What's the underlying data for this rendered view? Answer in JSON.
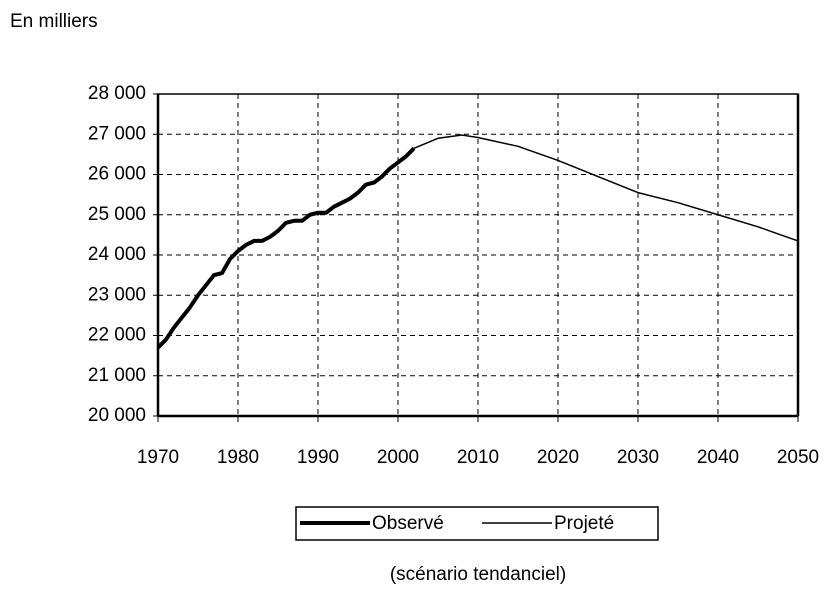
{
  "chart_data": {
    "type": "line",
    "y_label": "En milliers",
    "note": "(scénario tendanciel)",
    "xlim": [
      1970,
      2050
    ],
    "xticks": [
      1970,
      1980,
      1990,
      2000,
      2010,
      2020,
      2030,
      2040,
      2050
    ],
    "ylim": [
      20000,
      28000
    ],
    "yticks": [
      {
        "value": 20000,
        "label": "20 000"
      },
      {
        "value": 21000,
        "label": "21 000"
      },
      {
        "value": 22000,
        "label": "22 000"
      },
      {
        "value": 23000,
        "label": "23 000"
      },
      {
        "value": 24000,
        "label": "24 000"
      },
      {
        "value": 25000,
        "label": "25 000"
      },
      {
        "value": 26000,
        "label": "26 000"
      },
      {
        "value": 27000,
        "label": "27 000"
      },
      {
        "value": 28000,
        "label": "28 000"
      }
    ],
    "grid": true,
    "legend": "bottom",
    "series": [
      {
        "name": "Observé",
        "color": "#000000",
        "width": 4,
        "x": [
          1970,
          1971,
          1972,
          1973,
          1974,
          1975,
          1976,
          1977,
          1978,
          1979,
          1980,
          1981,
          1982,
          1983,
          1984,
          1985,
          1986,
          1987,
          1988,
          1989,
          1990,
          1991,
          1992,
          1993,
          1994,
          1995,
          1996,
          1997,
          1998,
          1999,
          2000,
          2001,
          2002
        ],
        "values": [
          21700,
          21900,
          22200,
          22450,
          22700,
          23000,
          23250,
          23500,
          23550,
          23900,
          24100,
          24250,
          24350,
          24350,
          24450,
          24600,
          24800,
          24850,
          24850,
          25000,
          25050,
          25050,
          25200,
          25300,
          25400,
          25550,
          25750,
          25800,
          25950,
          26150,
          26300,
          26450,
          26650
        ]
      },
      {
        "name": "Projeté",
        "color": "#000000",
        "width": 1.5,
        "x": [
          2002,
          2005,
          2008,
          2010,
          2015,
          2020,
          2025,
          2030,
          2035,
          2040,
          2045,
          2050
        ],
        "values": [
          26650,
          26900,
          26980,
          26920,
          26700,
          26350,
          25950,
          25550,
          25300,
          25000,
          24700,
          24350
        ]
      }
    ]
  }
}
